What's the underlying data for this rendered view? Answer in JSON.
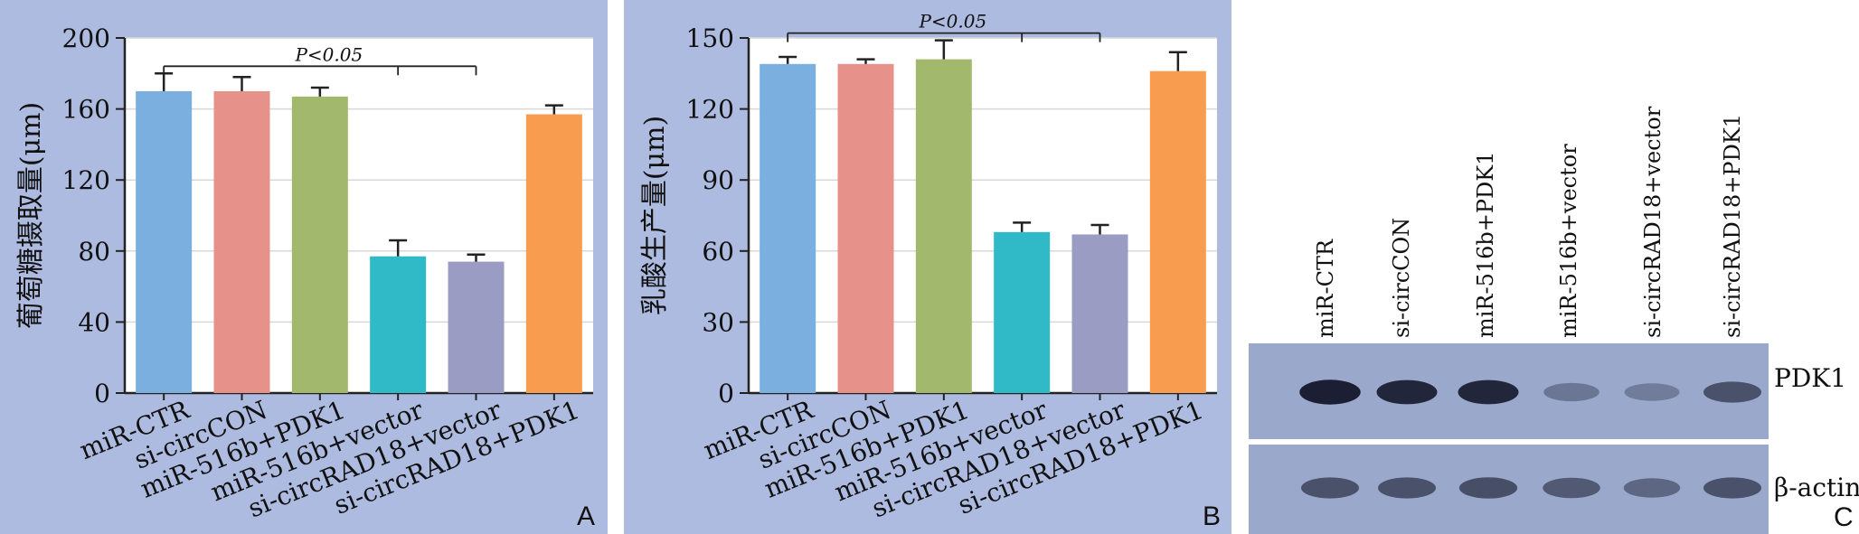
{
  "chart_data": [
    {
      "type": "bar",
      "panel": "A",
      "ylabel": "葡萄糖摄取量(μm)",
      "ylim": [
        0,
        200
      ],
      "yticks": [
        0,
        40,
        80,
        120,
        160,
        200
      ],
      "categories": [
        "miR-CTR",
        "si-circCON",
        "miR-516b+PDK1",
        "miR-516b+vector",
        "si-circRAD18+vector",
        "si-circRAD18+PDK1"
      ],
      "values": [
        170,
        170,
        167,
        77,
        74,
        157
      ],
      "errors": [
        10,
        8,
        5,
        9,
        4,
        5
      ],
      "colors": [
        "#7aafdf",
        "#e69189",
        "#a2b96d",
        "#30b9c6",
        "#9a9cc4",
        "#f89c50"
      ],
      "annotation": {
        "text": "P<0.05",
        "groupA": [
          0,
          2
        ],
        "groupB": [
          3,
          4
        ]
      },
      "grid": true
    },
    {
      "type": "bar",
      "panel": "B",
      "ylabel": "乳酸生产量(μm)",
      "ylim": [
        0,
        150
      ],
      "yticks": [
        0,
        30,
        60,
        90,
        120,
        150
      ],
      "categories": [
        "miR-CTR",
        "si-circCON",
        "miR-516b+PDK1",
        "miR-516b+vector",
        "si-circRAD18+vector",
        "si-circRAD18+PDK1"
      ],
      "values": [
        139,
        139,
        141,
        68,
        67,
        136
      ],
      "errors": [
        3,
        2,
        8,
        4,
        4,
        8
      ],
      "colors": [
        "#7aafdf",
        "#e69189",
        "#a2b96d",
        "#30b9c6",
        "#9a9cc4",
        "#f89c50"
      ],
      "annotation": {
        "text": "P<0.05",
        "groupA": [
          0,
          2
        ],
        "groupB": [
          3,
          4
        ]
      },
      "grid": true
    }
  ],
  "panel_letters": {
    "a": "A",
    "b": "B",
    "c": "C"
  },
  "blot": {
    "lanes": [
      "miR-CTR",
      "si-circCON",
      "miR-516b+PDK1",
      "miR-516b+vector",
      "si-circRAD18+vector",
      "si-circRAD18+PDK1"
    ],
    "rows": [
      {
        "label": "PDK1",
        "intensity": [
          0.95,
          0.9,
          0.9,
          0.35,
          0.3,
          0.6
        ]
      },
      {
        "label": "β-actin",
        "intensity": [
          0.6,
          0.6,
          0.62,
          0.55,
          0.45,
          0.6
        ]
      }
    ]
  }
}
